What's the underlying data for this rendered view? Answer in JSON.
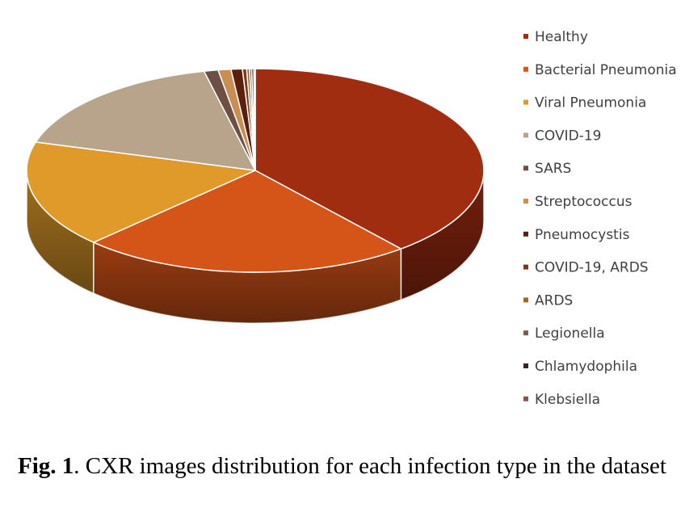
{
  "chart_data": {
    "type": "pie",
    "categories": [
      "Healthy",
      "Bacterial Pneumonia",
      "Viral Pneumonia",
      "COVID-19",
      "SARS",
      "Streptococcus",
      "Pneumocystis",
      "COVID-19, ARDS",
      "ARDS",
      "Legionella",
      "Chlamydophila",
      "Klebsiella"
    ],
    "values": [
      39.0,
      23.5,
      17.0,
      16.9,
      1.0,
      0.9,
      0.8,
      0.3,
      0.2,
      0.15,
      0.15,
      0.1
    ],
    "colors": [
      "#a12d10",
      "#d55418",
      "#e09a2a",
      "#b8a48b",
      "#6e4f43",
      "#c98e52",
      "#5c1f0c",
      "#7a3a1a",
      "#9b6a25",
      "#7b5a50",
      "#3a2418",
      "#82594c"
    ],
    "legend_position": "right",
    "three_d": true
  },
  "caption": {
    "label": "Fig. 1",
    "text": ".  CXR images distribution for each infection type in the dataset"
  }
}
